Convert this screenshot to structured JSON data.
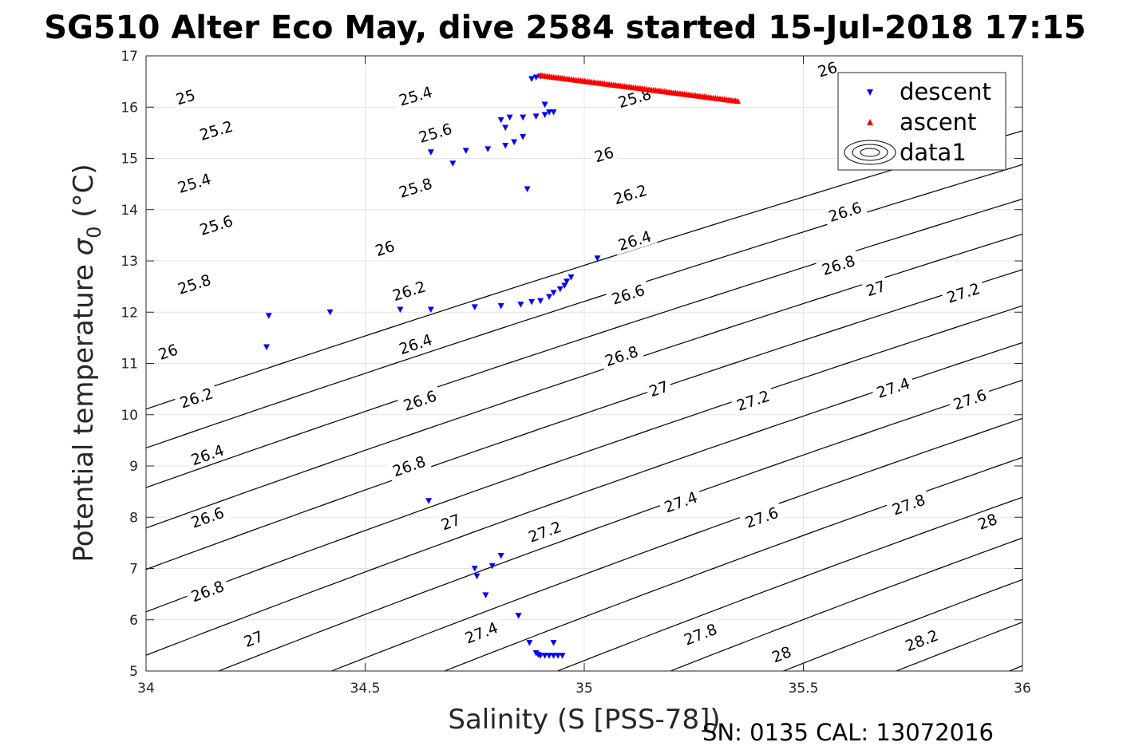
{
  "chart_data": {
    "type": "scatter",
    "title": "SG510 Alter Eco May, dive 2584 started 15-Jul-2018 17:15",
    "xlabel": "Salinity (S [PSS-78])",
    "ylabel_main": "Potential temperature ",
    "ylabel_sigma": "σ",
    "ylabel_sub": "0",
    "ylabel_unit": " (°C)",
    "xlim": [
      34,
      36
    ],
    "ylim": [
      5,
      17
    ],
    "xticks": [
      "34",
      "34.5",
      "35",
      "35.5",
      "36"
    ],
    "yticks": [
      "5",
      "6",
      "7",
      "8",
      "9",
      "10",
      "11",
      "12",
      "13",
      "14",
      "15",
      "16",
      "17"
    ],
    "grid": true,
    "legend_placement": "top-right",
    "footer": "SN: 0135  CAL: 13072016",
    "series": [
      {
        "name": "descent",
        "marker": "triangle-down",
        "color": "#0000ff",
        "points": [
          [
            34.89,
            16.58
          ],
          [
            34.88,
            16.55
          ],
          [
            34.9,
            16.6
          ],
          [
            34.91,
            16.05
          ],
          [
            34.92,
            15.9
          ],
          [
            34.91,
            15.85
          ],
          [
            34.93,
            15.9
          ],
          [
            34.89,
            15.82
          ],
          [
            34.86,
            15.8
          ],
          [
            34.83,
            15.8
          ],
          [
            34.81,
            15.75
          ],
          [
            34.82,
            15.6
          ],
          [
            34.86,
            15.42
          ],
          [
            34.84,
            15.32
          ],
          [
            34.82,
            15.25
          ],
          [
            34.78,
            15.18
          ],
          [
            34.73,
            15.15
          ],
          [
            34.65,
            15.12
          ],
          [
            34.7,
            14.9
          ],
          [
            34.87,
            14.4
          ],
          [
            35.03,
            13.05
          ],
          [
            34.97,
            12.68
          ],
          [
            34.96,
            12.6
          ],
          [
            34.955,
            12.52
          ],
          [
            34.945,
            12.45
          ],
          [
            34.93,
            12.38
          ],
          [
            34.92,
            12.3
          ],
          [
            34.9,
            12.22
          ],
          [
            34.88,
            12.2
          ],
          [
            34.855,
            12.15
          ],
          [
            34.81,
            12.12
          ],
          [
            34.75,
            12.1
          ],
          [
            34.65,
            12.05
          ],
          [
            34.58,
            12.05
          ],
          [
            34.42,
            12.0
          ],
          [
            34.28,
            11.93
          ],
          [
            34.275,
            11.32
          ],
          [
            34.645,
            8.32
          ],
          [
            34.75,
            7.0
          ],
          [
            34.755,
            6.85
          ],
          [
            34.81,
            7.25
          ],
          [
            34.79,
            7.05
          ],
          [
            34.775,
            6.48
          ],
          [
            34.85,
            6.08
          ],
          [
            34.875,
            5.55
          ],
          [
            34.93,
            5.55
          ],
          [
            34.89,
            5.35
          ],
          [
            34.895,
            5.32
          ],
          [
            34.9,
            5.3
          ],
          [
            34.91,
            5.3
          ],
          [
            34.92,
            5.3
          ],
          [
            34.93,
            5.3
          ],
          [
            34.94,
            5.3
          ],
          [
            34.95,
            5.3
          ]
        ]
      },
      {
        "name": "ascent",
        "marker": "triangle-up",
        "color": "#ff0000",
        "from": [
          34.9,
          16.62
        ],
        "to": [
          35.35,
          16.12
        ],
        "count": 90
      },
      {
        "name": "data1",
        "marker": "contour",
        "color": "#000000"
      }
    ],
    "contours": {
      "levels": [
        25,
        25.2,
        25.4,
        25.6,
        25.8,
        26,
        26.2,
        26.4,
        26.6,
        26.8,
        27,
        27.2,
        27.4,
        27.6,
        27.8,
        28,
        28.2,
        28.4
      ],
      "labels": [
        {
          "text": "25",
          "x": 34.09,
          "y": 16.2
        },
        {
          "text": "25.2",
          "x": 34.16,
          "y": 15.55
        },
        {
          "text": "25.4",
          "x": 34.11,
          "y": 14.52
        },
        {
          "text": "25.6",
          "x": 34.16,
          "y": 13.7
        },
        {
          "text": "25.8",
          "x": 34.11,
          "y": 12.55
        },
        {
          "text": "26",
          "x": 34.05,
          "y": 11.23
        },
        {
          "text": "26.2",
          "x": 34.115,
          "y": 10.33
        },
        {
          "text": "26.4",
          "x": 34.14,
          "y": 9.22
        },
        {
          "text": "26.6",
          "x": 34.14,
          "y": 8.0
        },
        {
          "text": "26.8",
          "x": 34.14,
          "y": 6.56
        },
        {
          "text": "27",
          "x": 34.245,
          "y": 5.63
        },
        {
          "text": "25.4",
          "x": 34.615,
          "y": 16.22
        },
        {
          "text": "25.6",
          "x": 34.66,
          "y": 15.5
        },
        {
          "text": "25.8",
          "x": 34.615,
          "y": 14.43
        },
        {
          "text": "26",
          "x": 34.545,
          "y": 13.25
        },
        {
          "text": "26.2",
          "x": 34.6,
          "y": 12.42
        },
        {
          "text": "26.4",
          "x": 34.615,
          "y": 11.38
        },
        {
          "text": "26.6",
          "x": 34.625,
          "y": 10.28
        },
        {
          "text": "26.8",
          "x": 34.6,
          "y": 9.0
        },
        {
          "text": "27",
          "x": 34.695,
          "y": 7.91
        },
        {
          "text": "27.2",
          "x": 34.91,
          "y": 7.72
        },
        {
          "text": "27.4",
          "x": 34.765,
          "y": 5.75
        },
        {
          "text": "25.8",
          "x": 35.115,
          "y": 16.18
        },
        {
          "text": "26",
          "x": 35.045,
          "y": 15.08
        },
        {
          "text": "26.2",
          "x": 35.105,
          "y": 14.3
        },
        {
          "text": "26.4",
          "x": 35.115,
          "y": 13.4
        },
        {
          "text": "26.6",
          "x": 35.1,
          "y": 12.35
        },
        {
          "text": "26.8",
          "x": 35.085,
          "y": 11.15
        },
        {
          "text": "27",
          "x": 35.17,
          "y": 10.51
        },
        {
          "text": "27.2",
          "x": 35.385,
          "y": 10.28
        },
        {
          "text": "27.4",
          "x": 35.22,
          "y": 8.3
        },
        {
          "text": "27.6",
          "x": 35.405,
          "y": 8.0
        },
        {
          "text": "27.8",
          "x": 35.265,
          "y": 5.72
        },
        {
          "text": "28",
          "x": 35.45,
          "y": 5.33
        },
        {
          "text": "26",
          "x": 35.555,
          "y": 16.74
        },
        {
          "text": "26.6",
          "x": 35.595,
          "y": 13.96
        },
        {
          "text": "26.8",
          "x": 35.58,
          "y": 12.92
        },
        {
          "text": "27",
          "x": 35.665,
          "y": 12.47
        },
        {
          "text": "27.2",
          "x": 35.865,
          "y": 12.38
        },
        {
          "text": "27.4",
          "x": 35.705,
          "y": 10.53
        },
        {
          "text": "27.6",
          "x": 35.88,
          "y": 10.3
        },
        {
          "text": "27.8",
          "x": 35.74,
          "y": 8.25
        },
        {
          "text": "28",
          "x": 35.92,
          "y": 7.92
        },
        {
          "text": "28.2",
          "x": 35.77,
          "y": 5.6
        }
      ]
    }
  }
}
